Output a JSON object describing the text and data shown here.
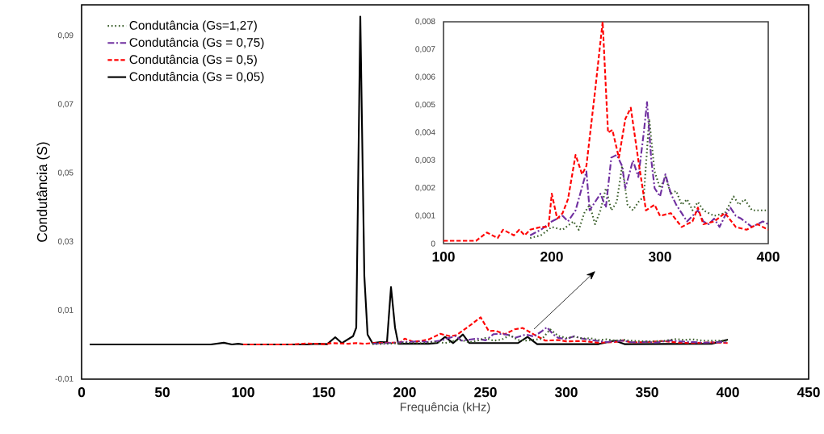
{
  "chart_data": [
    {
      "type": "line",
      "xlabel": "Frequência (kHz)",
      "ylabel": "Condutância (S)",
      "legend": "top left",
      "xlim": [
        0,
        450
      ],
      "xticks": [
        0,
        50,
        100,
        150,
        200,
        250,
        300,
        350,
        400,
        450
      ],
      "ylim": [
        -0.01,
        0.099
      ],
      "yticks": [
        {
          "value": -0.01,
          "label": "-0,01"
        },
        {
          "value": 0.01,
          "label": "0,01"
        },
        {
          "value": 0.03,
          "label": "0,03"
        },
        {
          "value": 0.05,
          "label": "0,05"
        },
        {
          "value": 0.07,
          "label": "0,07"
        },
        {
          "value": 0.09,
          "label": "0,09"
        }
      ],
      "series": [
        {
          "name": "Condutância (Gs=1,27)",
          "color": "#3a5e2a",
          "line_style": "dotted",
          "x": [
            180,
            190,
            200,
            210,
            220,
            225,
            230,
            235,
            240,
            245,
            250,
            255,
            260,
            265,
            270,
            275,
            280,
            285,
            290,
            295,
            300,
            305,
            310,
            315,
            320,
            325,
            330,
            335,
            340,
            350,
            360,
            368,
            373,
            378,
            385,
            392,
            400
          ],
          "values": [
            0.0002,
            0.0003,
            0.0006,
            0.0005,
            0.0008,
            0.0005,
            0.0011,
            0.0014,
            0.0007,
            0.0012,
            0.002,
            0.0012,
            0.0015,
            0.0028,
            0.0014,
            0.0012,
            0.0015,
            0.0017,
            0.0045,
            0.0026,
            0.002,
            0.0024,
            0.0018,
            0.0019,
            0.0014,
            0.0016,
            0.0012,
            0.0015,
            0.0012,
            0.001,
            0.0011,
            0.0017,
            0.0014,
            0.0016,
            0.0012,
            0.0012,
            0.0012
          ]
        },
        {
          "name": "Condutância (Gs = 0,75)",
          "color": "#7030a0",
          "line_style": "dashdot",
          "x": [
            180,
            190,
            200,
            210,
            215,
            222,
            232,
            235,
            240,
            245,
            250,
            255,
            260,
            265,
            268,
            275,
            280,
            285,
            288,
            292,
            295,
            300,
            305,
            310,
            315,
            320,
            325,
            330,
            335,
            340,
            345,
            350,
            355,
            360,
            365,
            370,
            375,
            385,
            395,
            400
          ],
          "values": [
            0.0003,
            0.0005,
            0.0008,
            0.001,
            0.0008,
            0.0012,
            0.0026,
            0.0012,
            0.0015,
            0.0018,
            0.0013,
            0.0031,
            0.0032,
            0.0028,
            0.002,
            0.003,
            0.0024,
            0.004,
            0.0051,
            0.003,
            0.002,
            0.0017,
            0.0025,
            0.0018,
            0.0014,
            0.0011,
            0.0008,
            0.001,
            0.0012,
            0.0008,
            0.0007,
            0.0009,
            0.0006,
            0.001,
            0.0013,
            0.001,
            0.0009,
            0.0006,
            0.0008,
            0.0007
          ]
        },
        {
          "name": "Condutância (Gs = 0,5)",
          "color": "#ff0000",
          "line_style": "dashed",
          "x": [
            100,
            130,
            140,
            150,
            155,
            165,
            170,
            175,
            180,
            190,
            197,
            200,
            205,
            210,
            215,
            222,
            228,
            232,
            240,
            247,
            252,
            256,
            262,
            268,
            273,
            280,
            287,
            295,
            300,
            310,
            320,
            330,
            335,
            340,
            350,
            360,
            370,
            380,
            390,
            400
          ],
          "values": [
            0.0001,
            0.0001,
            0.0004,
            0.0002,
            0.0005,
            0.0003,
            0.0005,
            0.0003,
            0.0005,
            0.0006,
            0.0006,
            0.0018,
            0.0009,
            0.0011,
            0.0016,
            0.0032,
            0.0025,
            0.0028,
            0.0055,
            0.008,
            0.004,
            0.0041,
            0.0031,
            0.0045,
            0.0049,
            0.003,
            0.0012,
            0.0014,
            0.001,
            0.0011,
            0.0006,
            0.0008,
            0.0013,
            0.0007,
            0.0008,
            0.0011,
            0.0006,
            0.0005,
            0.0007,
            0.0005
          ]
        },
        {
          "name": "Condutância (Gs = 0,05)",
          "color": "#000000",
          "line_style": "solid",
          "x": [
            5,
            80,
            88,
            93,
            97,
            100,
            140,
            145,
            152,
            157,
            161,
            168,
            170,
            172.5,
            175,
            177,
            180,
            185,
            189,
            191.5,
            194,
            196,
            215,
            220,
            225,
            230,
            236,
            240,
            270,
            276,
            282,
            320,
            330,
            336,
            390,
            400
          ],
          "values": [
            0.0001,
            0.0001,
            0.0006,
            0.0001,
            0.0003,
            0.0001,
            0.0001,
            0.0003,
            0.0002,
            0.0022,
            0.0005,
            0.0025,
            0.005,
            0.0956,
            0.02,
            0.003,
            0.0005,
            0.0008,
            0.0007,
            0.0168,
            0.005,
            0.0003,
            0.0003,
            0.0005,
            0.0023,
            0.0005,
            0.003,
            0.0005,
            0.0005,
            0.0023,
            0.0002,
            0.0002,
            0.0012,
            0.0002,
            0.0003,
            0.0015
          ]
        }
      ]
    },
    {
      "type": "line",
      "xlim": [
        100,
        400
      ],
      "xticks": [
        100,
        200,
        300,
        400
      ],
      "ylim": [
        0,
        0.008
      ],
      "yticks": [
        0,
        {
          "value": 0.001,
          "label": "0,001"
        },
        {
          "value": 0.002,
          "label": "0,002"
        },
        {
          "value": 0.003,
          "label": "0,003"
        },
        {
          "value": 0.004,
          "label": "0,004"
        },
        {
          "value": 0.005,
          "label": "0,005"
        },
        {
          "value": 0.006,
          "label": "0,006"
        },
        {
          "value": 0.007,
          "label": "0,007"
        },
        {
          "value": 0.008,
          "label": "0,008"
        }
      ],
      "series": [
        {
          "color": "#3a5e2a",
          "line_style": "dotted",
          "x": [
            180,
            190,
            200,
            210,
            220,
            225,
            230,
            235,
            240,
            245,
            250,
            255,
            260,
            265,
            270,
            275,
            280,
            285,
            290,
            295,
            300,
            305,
            310,
            315,
            320,
            325,
            330,
            335,
            340,
            350,
            360,
            368,
            373,
            378,
            385,
            392,
            400
          ],
          "values": [
            0.0002,
            0.0003,
            0.0006,
            0.0005,
            0.0008,
            0.0005,
            0.0011,
            0.0014,
            0.0007,
            0.0012,
            0.002,
            0.0012,
            0.0015,
            0.0028,
            0.0014,
            0.0012,
            0.0015,
            0.0017,
            0.0045,
            0.0026,
            0.002,
            0.0024,
            0.0018,
            0.0019,
            0.0014,
            0.0016,
            0.0012,
            0.0015,
            0.0012,
            0.001,
            0.0011,
            0.0017,
            0.0014,
            0.0016,
            0.0012,
            0.0012,
            0.0012
          ]
        },
        {
          "color": "#7030a0",
          "line_style": "dashdot",
          "x": [
            180,
            190,
            200,
            210,
            215,
            222,
            232,
            235,
            240,
            245,
            250,
            255,
            260,
            265,
            268,
            275,
            280,
            285,
            288,
            292,
            295,
            300,
            305,
            310,
            315,
            320,
            325,
            330,
            335,
            340,
            345,
            350,
            355,
            360,
            365,
            370,
            375,
            385,
            395,
            400
          ],
          "values": [
            0.0003,
            0.0005,
            0.0008,
            0.001,
            0.0008,
            0.0012,
            0.0026,
            0.0012,
            0.0015,
            0.0018,
            0.0013,
            0.0031,
            0.0032,
            0.0028,
            0.002,
            0.003,
            0.0024,
            0.004,
            0.0051,
            0.003,
            0.002,
            0.0017,
            0.0025,
            0.0018,
            0.0014,
            0.0011,
            0.0008,
            0.001,
            0.0012,
            0.0008,
            0.0007,
            0.0009,
            0.0006,
            0.001,
            0.0013,
            0.001,
            0.0009,
            0.0006,
            0.0008,
            0.0007
          ]
        },
        {
          "color": "#ff0000",
          "line_style": "dashed",
          "x": [
            100,
            130,
            140,
            150,
            155,
            165,
            170,
            175,
            180,
            190,
            197,
            200,
            205,
            210,
            215,
            222,
            228,
            232,
            240,
            247,
            252,
            256,
            262,
            268,
            273,
            280,
            287,
            295,
            300,
            310,
            320,
            330,
            335,
            340,
            350,
            360,
            370,
            380,
            390,
            400
          ],
          "values": [
            0.0001,
            0.0001,
            0.0004,
            0.0002,
            0.0005,
            0.0003,
            0.0005,
            0.0003,
            0.0005,
            0.0006,
            0.0006,
            0.0018,
            0.0009,
            0.0011,
            0.0016,
            0.0032,
            0.0025,
            0.0028,
            0.0055,
            0.008,
            0.004,
            0.0041,
            0.0031,
            0.0045,
            0.0049,
            0.003,
            0.0012,
            0.0014,
            0.001,
            0.0011,
            0.0006,
            0.0008,
            0.0013,
            0.0007,
            0.0008,
            0.0011,
            0.0006,
            0.0005,
            0.0007,
            0.0005
          ]
        }
      ]
    }
  ]
}
